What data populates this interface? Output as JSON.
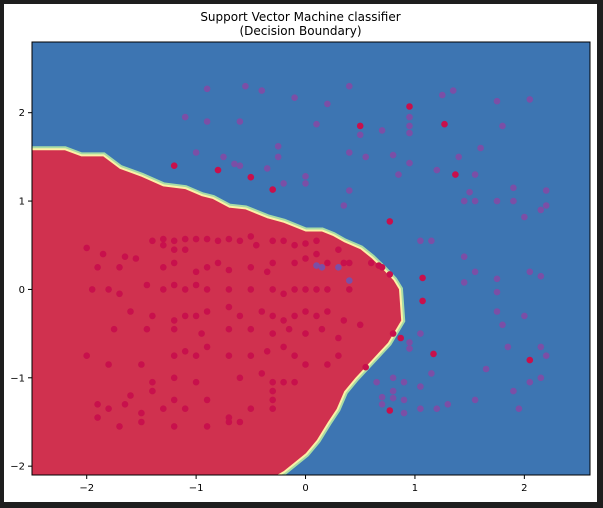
{
  "chart_data": {
    "type": "scatter",
    "title": "Support Vector Machine classifier",
    "subtitle": "(Decision Boundary)",
    "xlabel": "",
    "ylabel": "",
    "xlim": [
      -2.5,
      2.6
    ],
    "ylim": [
      -2.1,
      2.8
    ],
    "xticks": [
      -2,
      -1,
      0,
      1,
      2
    ],
    "yticks": [
      -2,
      -1,
      0,
      1,
      2
    ],
    "grid": false,
    "colors": {
      "region_class0": "#3d75b2",
      "region_class1": "#d0314f",
      "boundary_inner": "#fdf1a6",
      "boundary_outer": "#a8dca5",
      "point_class0": "#7b4fa6",
      "point_class1": "#c8104c"
    },
    "decision_boundary": [
      [
        -2.5,
        1.57
      ],
      [
        -2.2,
        1.57
      ],
      [
        -2.05,
        1.5
      ],
      [
        -1.85,
        1.5
      ],
      [
        -1.7,
        1.36
      ],
      [
        -1.5,
        1.27
      ],
      [
        -1.3,
        1.16
      ],
      [
        -1.1,
        1.13
      ],
      [
        -0.95,
        1.05
      ],
      [
        -0.85,
        1.02
      ],
      [
        -0.7,
        0.92
      ],
      [
        -0.55,
        0.9
      ],
      [
        -0.35,
        0.8
      ],
      [
        -0.2,
        0.75
      ],
      [
        0.0,
        0.65
      ],
      [
        0.15,
        0.65
      ],
      [
        0.25,
        0.6
      ],
      [
        0.35,
        0.53
      ],
      [
        0.5,
        0.45
      ],
      [
        0.6,
        0.35
      ],
      [
        0.7,
        0.23
      ],
      [
        0.8,
        0.1
      ],
      [
        0.85,
        0.0
      ],
      [
        0.87,
        -0.35
      ],
      [
        0.75,
        -0.6
      ],
      [
        0.6,
        -0.8
      ],
      [
        0.45,
        -1.0
      ],
      [
        0.35,
        -1.15
      ],
      [
        0.28,
        -1.35
      ],
      [
        0.2,
        -1.5
      ],
      [
        0.1,
        -1.7
      ],
      [
        0.0,
        -1.85
      ],
      [
        -0.1,
        -1.95
      ],
      [
        -0.2,
        -2.05
      ],
      [
        -0.27,
        -2.1
      ],
      [
        -2.5,
        -2.1
      ]
    ],
    "series": [
      {
        "class": 0,
        "points": [
          [
            -0.9,
            2.27
          ],
          [
            -0.55,
            2.3
          ],
          [
            -0.4,
            2.25
          ],
          [
            -0.1,
            2.17
          ],
          [
            0.2,
            2.1
          ],
          [
            0.4,
            2.3
          ],
          [
            -1.1,
            1.95
          ],
          [
            -0.9,
            1.9
          ],
          [
            -0.6,
            1.9
          ],
          [
            0.1,
            1.87
          ],
          [
            0.5,
            1.75
          ],
          [
            0.7,
            1.8
          ],
          [
            0.95,
            1.85
          ],
          [
            0.95,
            1.95
          ],
          [
            0.95,
            1.77
          ],
          [
            1.35,
            2.25
          ],
          [
            1.25,
            2.2
          ],
          [
            1.75,
            2.13
          ],
          [
            1.8,
            1.85
          ],
          [
            2.05,
            2.15
          ],
          [
            -1.0,
            1.55
          ],
          [
            -0.75,
            1.5
          ],
          [
            -0.65,
            1.42
          ],
          [
            -0.6,
            1.4
          ],
          [
            -0.25,
            1.62
          ],
          [
            -0.25,
            1.5
          ],
          [
            -0.35,
            1.37
          ],
          [
            -0.5,
            1.27
          ],
          [
            -0.2,
            1.2
          ],
          [
            0.0,
            1.28
          ],
          [
            0.0,
            1.2
          ],
          [
            0.4,
            1.55
          ],
          [
            0.55,
            1.5
          ],
          [
            0.8,
            1.52
          ],
          [
            0.95,
            1.43
          ],
          [
            0.85,
            1.3
          ],
          [
            1.2,
            1.35
          ],
          [
            1.4,
            1.5
          ],
          [
            1.6,
            1.6
          ],
          [
            1.55,
            1.3
          ],
          [
            1.5,
            1.1
          ],
          [
            1.55,
            1.0
          ],
          [
            1.45,
            1.0
          ],
          [
            1.75,
            1.0
          ],
          [
            1.9,
            1.0
          ],
          [
            1.9,
            1.15
          ],
          [
            2.2,
            1.12
          ],
          [
            2.2,
            0.95
          ],
          [
            2.15,
            0.9
          ],
          [
            2.0,
            0.82
          ],
          [
            0.35,
            0.95
          ],
          [
            0.4,
            1.12
          ],
          [
            1.05,
            0.55
          ],
          [
            1.15,
            0.55
          ],
          [
            1.45,
            0.37
          ],
          [
            1.55,
            0.2
          ],
          [
            1.75,
            0.12
          ],
          [
            2.05,
            0.2
          ],
          [
            2.15,
            0.15
          ],
          [
            1.45,
            0.08
          ],
          [
            1.75,
            -0.03
          ],
          [
            1.75,
            -0.25
          ],
          [
            2.0,
            -0.3
          ],
          [
            1.8,
            -0.4
          ],
          [
            2.15,
            -0.65
          ],
          [
            2.2,
            -0.75
          ],
          [
            2.15,
            -1.0
          ],
          [
            1.85,
            -0.65
          ],
          [
            1.65,
            -0.9
          ],
          [
            2.05,
            -1.05
          ],
          [
            1.9,
            -1.15
          ],
          [
            1.55,
            -1.25
          ],
          [
            1.95,
            -1.35
          ],
          [
            1.3,
            -1.3
          ],
          [
            1.2,
            -1.35
          ],
          [
            1.05,
            -1.1
          ],
          [
            1.15,
            -0.95
          ],
          [
            0.8,
            -1.0
          ],
          [
            0.8,
            -1.15
          ],
          [
            0.8,
            -1.23
          ],
          [
            0.7,
            -1.3
          ],
          [
            0.7,
            -1.22
          ],
          [
            0.65,
            -1.05
          ],
          [
            0.9,
            -1.05
          ],
          [
            0.9,
            -1.25
          ],
          [
            0.9,
            -1.4
          ],
          [
            1.05,
            -1.35
          ],
          [
            1.05,
            -0.5
          ],
          [
            0.95,
            -0.6
          ],
          [
            0.95,
            -0.67
          ],
          [
            0.1,
            0.27
          ],
          [
            0.15,
            0.25
          ],
          [
            0.3,
            0.25
          ],
          [
            0.4,
            0.1
          ]
        ]
      },
      {
        "class": 1,
        "points": [
          [
            0.95,
            2.07
          ],
          [
            0.5,
            1.85
          ],
          [
            1.27,
            1.87
          ],
          [
            -1.2,
            1.4
          ],
          [
            -0.8,
            1.35
          ],
          [
            -0.5,
            1.27
          ],
          [
            -0.3,
            1.13
          ],
          [
            1.37,
            1.3
          ],
          [
            -2.0,
            0.47
          ],
          [
            -1.85,
            0.4
          ],
          [
            -1.65,
            0.37
          ],
          [
            -1.55,
            0.35
          ],
          [
            -1.4,
            0.55
          ],
          [
            -1.3,
            0.5
          ],
          [
            -1.3,
            0.57
          ],
          [
            -1.2,
            0.55
          ],
          [
            -1.2,
            0.45
          ],
          [
            -1.1,
            0.45
          ],
          [
            -1.1,
            0.57
          ],
          [
            -1.0,
            0.57
          ],
          [
            -0.9,
            0.57
          ],
          [
            -0.8,
            0.55
          ],
          [
            -0.7,
            0.57
          ],
          [
            -0.6,
            0.55
          ],
          [
            -0.5,
            0.6
          ],
          [
            -0.45,
            0.5
          ],
          [
            -0.3,
            0.55
          ],
          [
            -0.2,
            0.55
          ],
          [
            -0.1,
            0.5
          ],
          [
            0.0,
            0.52
          ],
          [
            0.1,
            0.55
          ],
          [
            0.3,
            0.45
          ],
          [
            0.35,
            0.3
          ],
          [
            -1.9,
            0.25
          ],
          [
            -1.7,
            0.25
          ],
          [
            -1.3,
            0.25
          ],
          [
            -1.2,
            0.3
          ],
          [
            -1.0,
            0.2
          ],
          [
            -0.9,
            0.25
          ],
          [
            -0.8,
            0.3
          ],
          [
            -0.7,
            0.22
          ],
          [
            -0.5,
            0.25
          ],
          [
            -0.35,
            0.2
          ],
          [
            -0.3,
            0.3
          ],
          [
            -0.1,
            0.3
          ],
          [
            0.0,
            0.35
          ],
          [
            0.1,
            0.4
          ],
          [
            0.2,
            0.3
          ],
          [
            0.4,
            0.3
          ],
          [
            0.6,
            0.3
          ],
          [
            0.7,
            0.25
          ],
          [
            -1.95,
            0.0
          ],
          [
            -1.8,
            0.0
          ],
          [
            -1.7,
            -0.05
          ],
          [
            -1.45,
            0.05
          ],
          [
            -1.3,
            0.0
          ],
          [
            -1.2,
            0.05
          ],
          [
            -1.1,
            0.0
          ],
          [
            -1.0,
            0.05
          ],
          [
            -0.9,
            0.0
          ],
          [
            -0.7,
            0.0
          ],
          [
            -0.5,
            0.0
          ],
          [
            -0.3,
            0.0
          ],
          [
            -0.2,
            -0.05
          ],
          [
            -0.1,
            0.0
          ],
          [
            0.0,
            0.0
          ],
          [
            0.1,
            0.0
          ],
          [
            0.2,
            0.0
          ],
          [
            0.4,
            0.0
          ],
          [
            -1.6,
            -0.25
          ],
          [
            -1.4,
            -0.3
          ],
          [
            -1.2,
            -0.35
          ],
          [
            -1.1,
            -0.3
          ],
          [
            -1.0,
            -0.3
          ],
          [
            -0.9,
            -0.25
          ],
          [
            -0.7,
            -0.2
          ],
          [
            -0.6,
            -0.3
          ],
          [
            -0.4,
            -0.25
          ],
          [
            -0.3,
            -0.3
          ],
          [
            -0.2,
            -0.35
          ],
          [
            -0.1,
            -0.3
          ],
          [
            0.0,
            -0.25
          ],
          [
            0.1,
            -0.3
          ],
          [
            0.2,
            -0.25
          ],
          [
            0.35,
            -0.35
          ],
          [
            0.5,
            -0.4
          ],
          [
            -1.75,
            -0.45
          ],
          [
            -1.45,
            -0.45
          ],
          [
            -1.2,
            -0.45
          ],
          [
            -0.95,
            -0.5
          ],
          [
            -0.7,
            -0.45
          ],
          [
            -0.5,
            -0.45
          ],
          [
            -0.3,
            -0.5
          ],
          [
            -0.15,
            -0.45
          ],
          [
            0.0,
            -0.5
          ],
          [
            0.15,
            -0.45
          ],
          [
            0.3,
            -0.55
          ],
          [
            -2.0,
            -0.75
          ],
          [
            -1.8,
            -0.85
          ],
          [
            -1.5,
            -0.85
          ],
          [
            -1.2,
            -0.75
          ],
          [
            -1.1,
            -0.7
          ],
          [
            -1.0,
            -0.75
          ],
          [
            -0.9,
            -0.65
          ],
          [
            -0.7,
            -0.75
          ],
          [
            -0.5,
            -0.75
          ],
          [
            -0.35,
            -0.7
          ],
          [
            -0.2,
            -0.65
          ],
          [
            -0.1,
            -0.75
          ],
          [
            0.0,
            -0.85
          ],
          [
            0.2,
            -0.85
          ],
          [
            0.3,
            -0.75
          ],
          [
            -1.9,
            -1.3
          ],
          [
            -1.8,
            -1.35
          ],
          [
            -1.65,
            -1.3
          ],
          [
            -1.5,
            -1.4
          ],
          [
            -1.4,
            -1.15
          ],
          [
            -1.3,
            -1.35
          ],
          [
            -1.2,
            -1.25
          ],
          [
            -1.1,
            -1.35
          ],
          [
            -0.9,
            -1.25
          ],
          [
            -0.7,
            -1.45
          ],
          [
            -0.5,
            -1.35
          ],
          [
            -0.3,
            -1.35
          ],
          [
            -0.3,
            -1.25
          ],
          [
            -0.3,
            -1.15
          ],
          [
            -0.1,
            -1.05
          ],
          [
            -1.9,
            -1.45
          ],
          [
            -1.7,
            -1.55
          ],
          [
            -1.5,
            -1.5
          ],
          [
            -1.2,
            -1.55
          ],
          [
            -0.9,
            -1.55
          ],
          [
            -0.7,
            -1.5
          ],
          [
            -0.6,
            -1.5
          ],
          [
            -1.6,
            -1.2
          ],
          [
            -1.4,
            -1.05
          ],
          [
            -1.2,
            -1.0
          ],
          [
            -1.0,
            -1.05
          ],
          [
            -0.6,
            -1.0
          ],
          [
            -0.4,
            -0.95
          ],
          [
            -0.3,
            -1.05
          ],
          [
            -0.2,
            -1.05
          ],
          [
            0.55,
            -0.88
          ],
          [
            0.67,
            0.27
          ],
          [
            0.77,
            0.77
          ],
          [
            0.77,
            0.17
          ],
          [
            1.07,
            0.13
          ],
          [
            1.07,
            -0.13
          ],
          [
            0.8,
            -0.5
          ],
          [
            0.87,
            -0.55
          ],
          [
            1.17,
            -0.73
          ],
          [
            2.05,
            -0.8
          ],
          [
            0.77,
            -1.37
          ]
        ]
      }
    ]
  }
}
